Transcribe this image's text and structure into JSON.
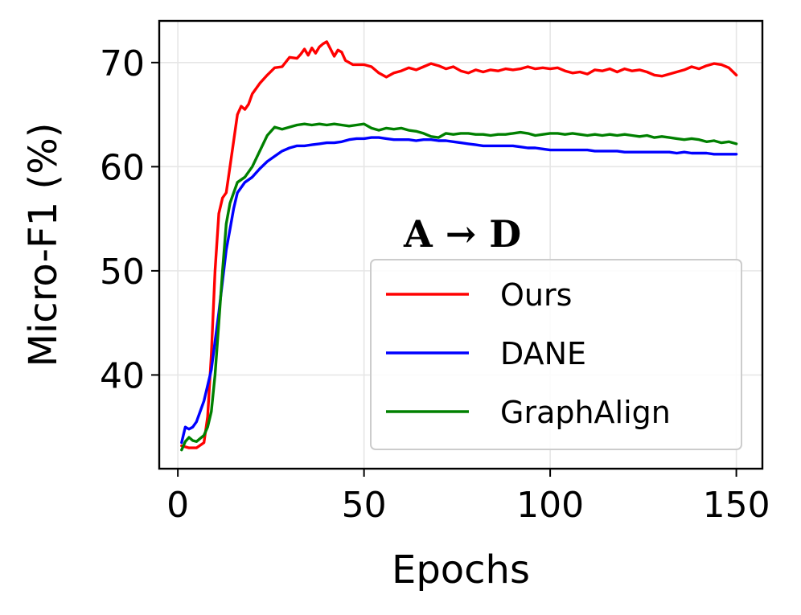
{
  "chart_data": {
    "type": "line",
    "title": "",
    "annotation": "A → D",
    "xlabel": "Epochs",
    "ylabel": "Micro-F1 (%)",
    "xlim": [
      -5,
      157
    ],
    "ylim": [
      31,
      74
    ],
    "xticks": [
      0,
      50,
      100,
      150
    ],
    "yticks": [
      40,
      50,
      60,
      70
    ],
    "grid": true,
    "legend_position": "lower-right",
    "series": [
      {
        "name": "Ours",
        "color": "#ff0000",
        "points": [
          [
            1,
            33.2
          ],
          [
            3,
            33.0
          ],
          [
            5,
            33.0
          ],
          [
            7,
            33.5
          ],
          [
            8,
            36.0
          ],
          [
            9,
            42.0
          ],
          [
            10,
            50.0
          ],
          [
            11,
            55.5
          ],
          [
            12,
            57.0
          ],
          [
            13,
            57.5
          ],
          [
            14,
            60.0
          ],
          [
            15,
            62.5
          ],
          [
            16,
            65.0
          ],
          [
            17,
            65.8
          ],
          [
            18,
            65.5
          ],
          [
            19,
            66.0
          ],
          [
            20,
            67.0
          ],
          [
            22,
            68.0
          ],
          [
            24,
            68.8
          ],
          [
            26,
            69.5
          ],
          [
            28,
            69.6
          ],
          [
            30,
            70.5
          ],
          [
            32,
            70.4
          ],
          [
            33,
            70.8
          ],
          [
            34,
            71.3
          ],
          [
            35,
            70.7
          ],
          [
            36,
            71.4
          ],
          [
            37,
            70.9
          ],
          [
            38,
            71.5
          ],
          [
            39,
            71.8
          ],
          [
            40,
            72.0
          ],
          [
            41,
            71.3
          ],
          [
            42,
            70.6
          ],
          [
            43,
            71.2
          ],
          [
            44,
            71.0
          ],
          [
            45,
            70.2
          ],
          [
            47,
            69.8
          ],
          [
            50,
            69.8
          ],
          [
            52,
            69.6
          ],
          [
            54,
            69.0
          ],
          [
            56,
            68.6
          ],
          [
            58,
            69.0
          ],
          [
            60,
            69.2
          ],
          [
            62,
            69.5
          ],
          [
            64,
            69.3
          ],
          [
            66,
            69.6
          ],
          [
            68,
            69.9
          ],
          [
            70,
            69.7
          ],
          [
            72,
            69.4
          ],
          [
            74,
            69.6
          ],
          [
            76,
            69.2
          ],
          [
            78,
            69.0
          ],
          [
            80,
            69.3
          ],
          [
            82,
            69.1
          ],
          [
            84,
            69.3
          ],
          [
            86,
            69.2
          ],
          [
            88,
            69.4
          ],
          [
            90,
            69.3
          ],
          [
            92,
            69.4
          ],
          [
            94,
            69.6
          ],
          [
            96,
            69.4
          ],
          [
            98,
            69.5
          ],
          [
            100,
            69.4
          ],
          [
            102,
            69.5
          ],
          [
            104,
            69.2
          ],
          [
            106,
            69.0
          ],
          [
            108,
            69.1
          ],
          [
            110,
            68.9
          ],
          [
            112,
            69.3
          ],
          [
            114,
            69.2
          ],
          [
            116,
            69.4
          ],
          [
            118,
            69.1
          ],
          [
            120,
            69.4
          ],
          [
            122,
            69.2
          ],
          [
            124,
            69.3
          ],
          [
            126,
            69.1
          ],
          [
            128,
            68.8
          ],
          [
            130,
            68.7
          ],
          [
            132,
            68.9
          ],
          [
            134,
            69.1
          ],
          [
            136,
            69.3
          ],
          [
            138,
            69.6
          ],
          [
            140,
            69.4
          ],
          [
            142,
            69.7
          ],
          [
            144,
            69.9
          ],
          [
            146,
            69.8
          ],
          [
            148,
            69.5
          ],
          [
            150,
            68.8
          ]
        ]
      },
      {
        "name": "DANE",
        "color": "#0000ff",
        "points": [
          [
            1,
            33.5
          ],
          [
            2,
            35.0
          ],
          [
            3,
            34.8
          ],
          [
            4,
            35.0
          ],
          [
            5,
            35.5
          ],
          [
            7,
            37.5
          ],
          [
            9,
            40.5
          ],
          [
            11,
            46.0
          ],
          [
            12,
            49.0
          ],
          [
            13,
            52.0
          ],
          [
            14,
            54.0
          ],
          [
            15,
            56.0
          ],
          [
            16,
            57.5
          ],
          [
            18,
            58.5
          ],
          [
            20,
            59.0
          ],
          [
            22,
            59.8
          ],
          [
            24,
            60.5
          ],
          [
            26,
            61.0
          ],
          [
            28,
            61.5
          ],
          [
            30,
            61.8
          ],
          [
            32,
            62.0
          ],
          [
            34,
            62.0
          ],
          [
            36,
            62.1
          ],
          [
            38,
            62.2
          ],
          [
            40,
            62.3
          ],
          [
            42,
            62.3
          ],
          [
            44,
            62.4
          ],
          [
            46,
            62.6
          ],
          [
            48,
            62.7
          ],
          [
            50,
            62.7
          ],
          [
            52,
            62.8
          ],
          [
            54,
            62.8
          ],
          [
            56,
            62.7
          ],
          [
            58,
            62.6
          ],
          [
            60,
            62.6
          ],
          [
            62,
            62.6
          ],
          [
            64,
            62.5
          ],
          [
            66,
            62.6
          ],
          [
            68,
            62.6
          ],
          [
            70,
            62.5
          ],
          [
            72,
            62.5
          ],
          [
            74,
            62.4
          ],
          [
            76,
            62.3
          ],
          [
            78,
            62.2
          ],
          [
            80,
            62.1
          ],
          [
            82,
            62.0
          ],
          [
            84,
            62.0
          ],
          [
            86,
            62.0
          ],
          [
            88,
            62.0
          ],
          [
            90,
            62.0
          ],
          [
            92,
            61.9
          ],
          [
            94,
            61.8
          ],
          [
            96,
            61.8
          ],
          [
            98,
            61.7
          ],
          [
            100,
            61.6
          ],
          [
            102,
            61.6
          ],
          [
            104,
            61.6
          ],
          [
            106,
            61.6
          ],
          [
            108,
            61.6
          ],
          [
            110,
            61.6
          ],
          [
            112,
            61.5
          ],
          [
            114,
            61.5
          ],
          [
            116,
            61.5
          ],
          [
            118,
            61.5
          ],
          [
            120,
            61.4
          ],
          [
            122,
            61.4
          ],
          [
            124,
            61.4
          ],
          [
            126,
            61.4
          ],
          [
            128,
            61.4
          ],
          [
            130,
            61.4
          ],
          [
            132,
            61.4
          ],
          [
            134,
            61.3
          ],
          [
            136,
            61.4
          ],
          [
            138,
            61.3
          ],
          [
            140,
            61.3
          ],
          [
            142,
            61.3
          ],
          [
            144,
            61.2
          ],
          [
            146,
            61.2
          ],
          [
            148,
            61.2
          ],
          [
            150,
            61.2
          ]
        ]
      },
      {
        "name": "GraphAlign",
        "color": "#008000",
        "points": [
          [
            1,
            32.8
          ],
          [
            2,
            33.6
          ],
          [
            3,
            34.0
          ],
          [
            4,
            33.7
          ],
          [
            5,
            33.6
          ],
          [
            6,
            33.9
          ],
          [
            7,
            34.2
          ],
          [
            8,
            35.0
          ],
          [
            9,
            36.5
          ],
          [
            10,
            40.0
          ],
          [
            11,
            45.0
          ],
          [
            12,
            50.0
          ],
          [
            13,
            54.5
          ],
          [
            14,
            56.5
          ],
          [
            15,
            57.5
          ],
          [
            16,
            58.5
          ],
          [
            18,
            59.0
          ],
          [
            20,
            60.0
          ],
          [
            22,
            61.5
          ],
          [
            24,
            63.0
          ],
          [
            26,
            63.8
          ],
          [
            28,
            63.6
          ],
          [
            30,
            63.8
          ],
          [
            32,
            64.0
          ],
          [
            34,
            64.1
          ],
          [
            36,
            64.0
          ],
          [
            38,
            64.1
          ],
          [
            40,
            64.0
          ],
          [
            42,
            64.1
          ],
          [
            44,
            64.0
          ],
          [
            46,
            63.9
          ],
          [
            48,
            64.0
          ],
          [
            50,
            64.1
          ],
          [
            52,
            63.7
          ],
          [
            54,
            63.5
          ],
          [
            56,
            63.7
          ],
          [
            58,
            63.6
          ],
          [
            60,
            63.7
          ],
          [
            62,
            63.5
          ],
          [
            64,
            63.4
          ],
          [
            66,
            63.2
          ],
          [
            68,
            62.9
          ],
          [
            70,
            62.8
          ],
          [
            72,
            63.2
          ],
          [
            74,
            63.1
          ],
          [
            76,
            63.2
          ],
          [
            78,
            63.2
          ],
          [
            80,
            63.1
          ],
          [
            82,
            63.1
          ],
          [
            84,
            63.0
          ],
          [
            86,
            63.1
          ],
          [
            88,
            63.1
          ],
          [
            90,
            63.2
          ],
          [
            92,
            63.3
          ],
          [
            94,
            63.2
          ],
          [
            96,
            63.0
          ],
          [
            98,
            63.1
          ],
          [
            100,
            63.2
          ],
          [
            102,
            63.2
          ],
          [
            104,
            63.1
          ],
          [
            106,
            63.2
          ],
          [
            108,
            63.1
          ],
          [
            110,
            63.0
          ],
          [
            112,
            63.1
          ],
          [
            114,
            63.0
          ],
          [
            116,
            63.1
          ],
          [
            118,
            63.0
          ],
          [
            120,
            63.1
          ],
          [
            122,
            63.0
          ],
          [
            124,
            62.9
          ],
          [
            126,
            63.0
          ],
          [
            128,
            62.8
          ],
          [
            130,
            62.9
          ],
          [
            132,
            62.8
          ],
          [
            134,
            62.7
          ],
          [
            136,
            62.6
          ],
          [
            138,
            62.7
          ],
          [
            140,
            62.6
          ],
          [
            142,
            62.4
          ],
          [
            144,
            62.5
          ],
          [
            146,
            62.3
          ],
          [
            148,
            62.4
          ],
          [
            150,
            62.2
          ]
        ]
      }
    ]
  }
}
